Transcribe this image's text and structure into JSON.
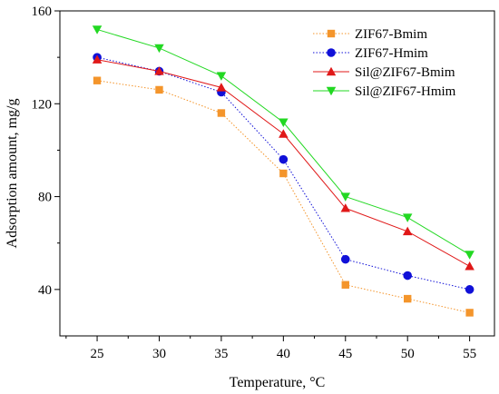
{
  "chart_data": {
    "type": "line",
    "xlabel": "Temperature, °C",
    "ylabel": "Adsorption amount, mg/g",
    "x": [
      25,
      30,
      35,
      40,
      45,
      50,
      55
    ],
    "xlim": [
      22,
      57
    ],
    "ylim": [
      20,
      160
    ],
    "yticks": [
      40,
      80,
      120,
      160
    ],
    "grid": false,
    "legend_position": "top-right",
    "series": [
      {
        "name": "ZIF67-Bmim",
        "color": "#F4952B",
        "marker": "square",
        "line_style": "dotted",
        "values": [
          130,
          126,
          116,
          90,
          42,
          36,
          30
        ]
      },
      {
        "name": "ZIF67-Hmim",
        "color": "#1010D8",
        "marker": "circle",
        "line_style": "dotted",
        "values": [
          140,
          134,
          125,
          96,
          53,
          46,
          40
        ]
      },
      {
        "name": "Sil@ZIF67-Bmim",
        "color": "#E01818",
        "marker": "triangle-up",
        "line_style": "solid",
        "values": [
          139,
          134,
          127,
          107,
          75,
          65,
          50
        ]
      },
      {
        "name": "Sil@ZIF67-Hmim",
        "color": "#22D822",
        "marker": "triangle-down",
        "line_style": "solid",
        "values": [
          152,
          144,
          132,
          112,
          80,
          71,
          55
        ]
      }
    ]
  }
}
